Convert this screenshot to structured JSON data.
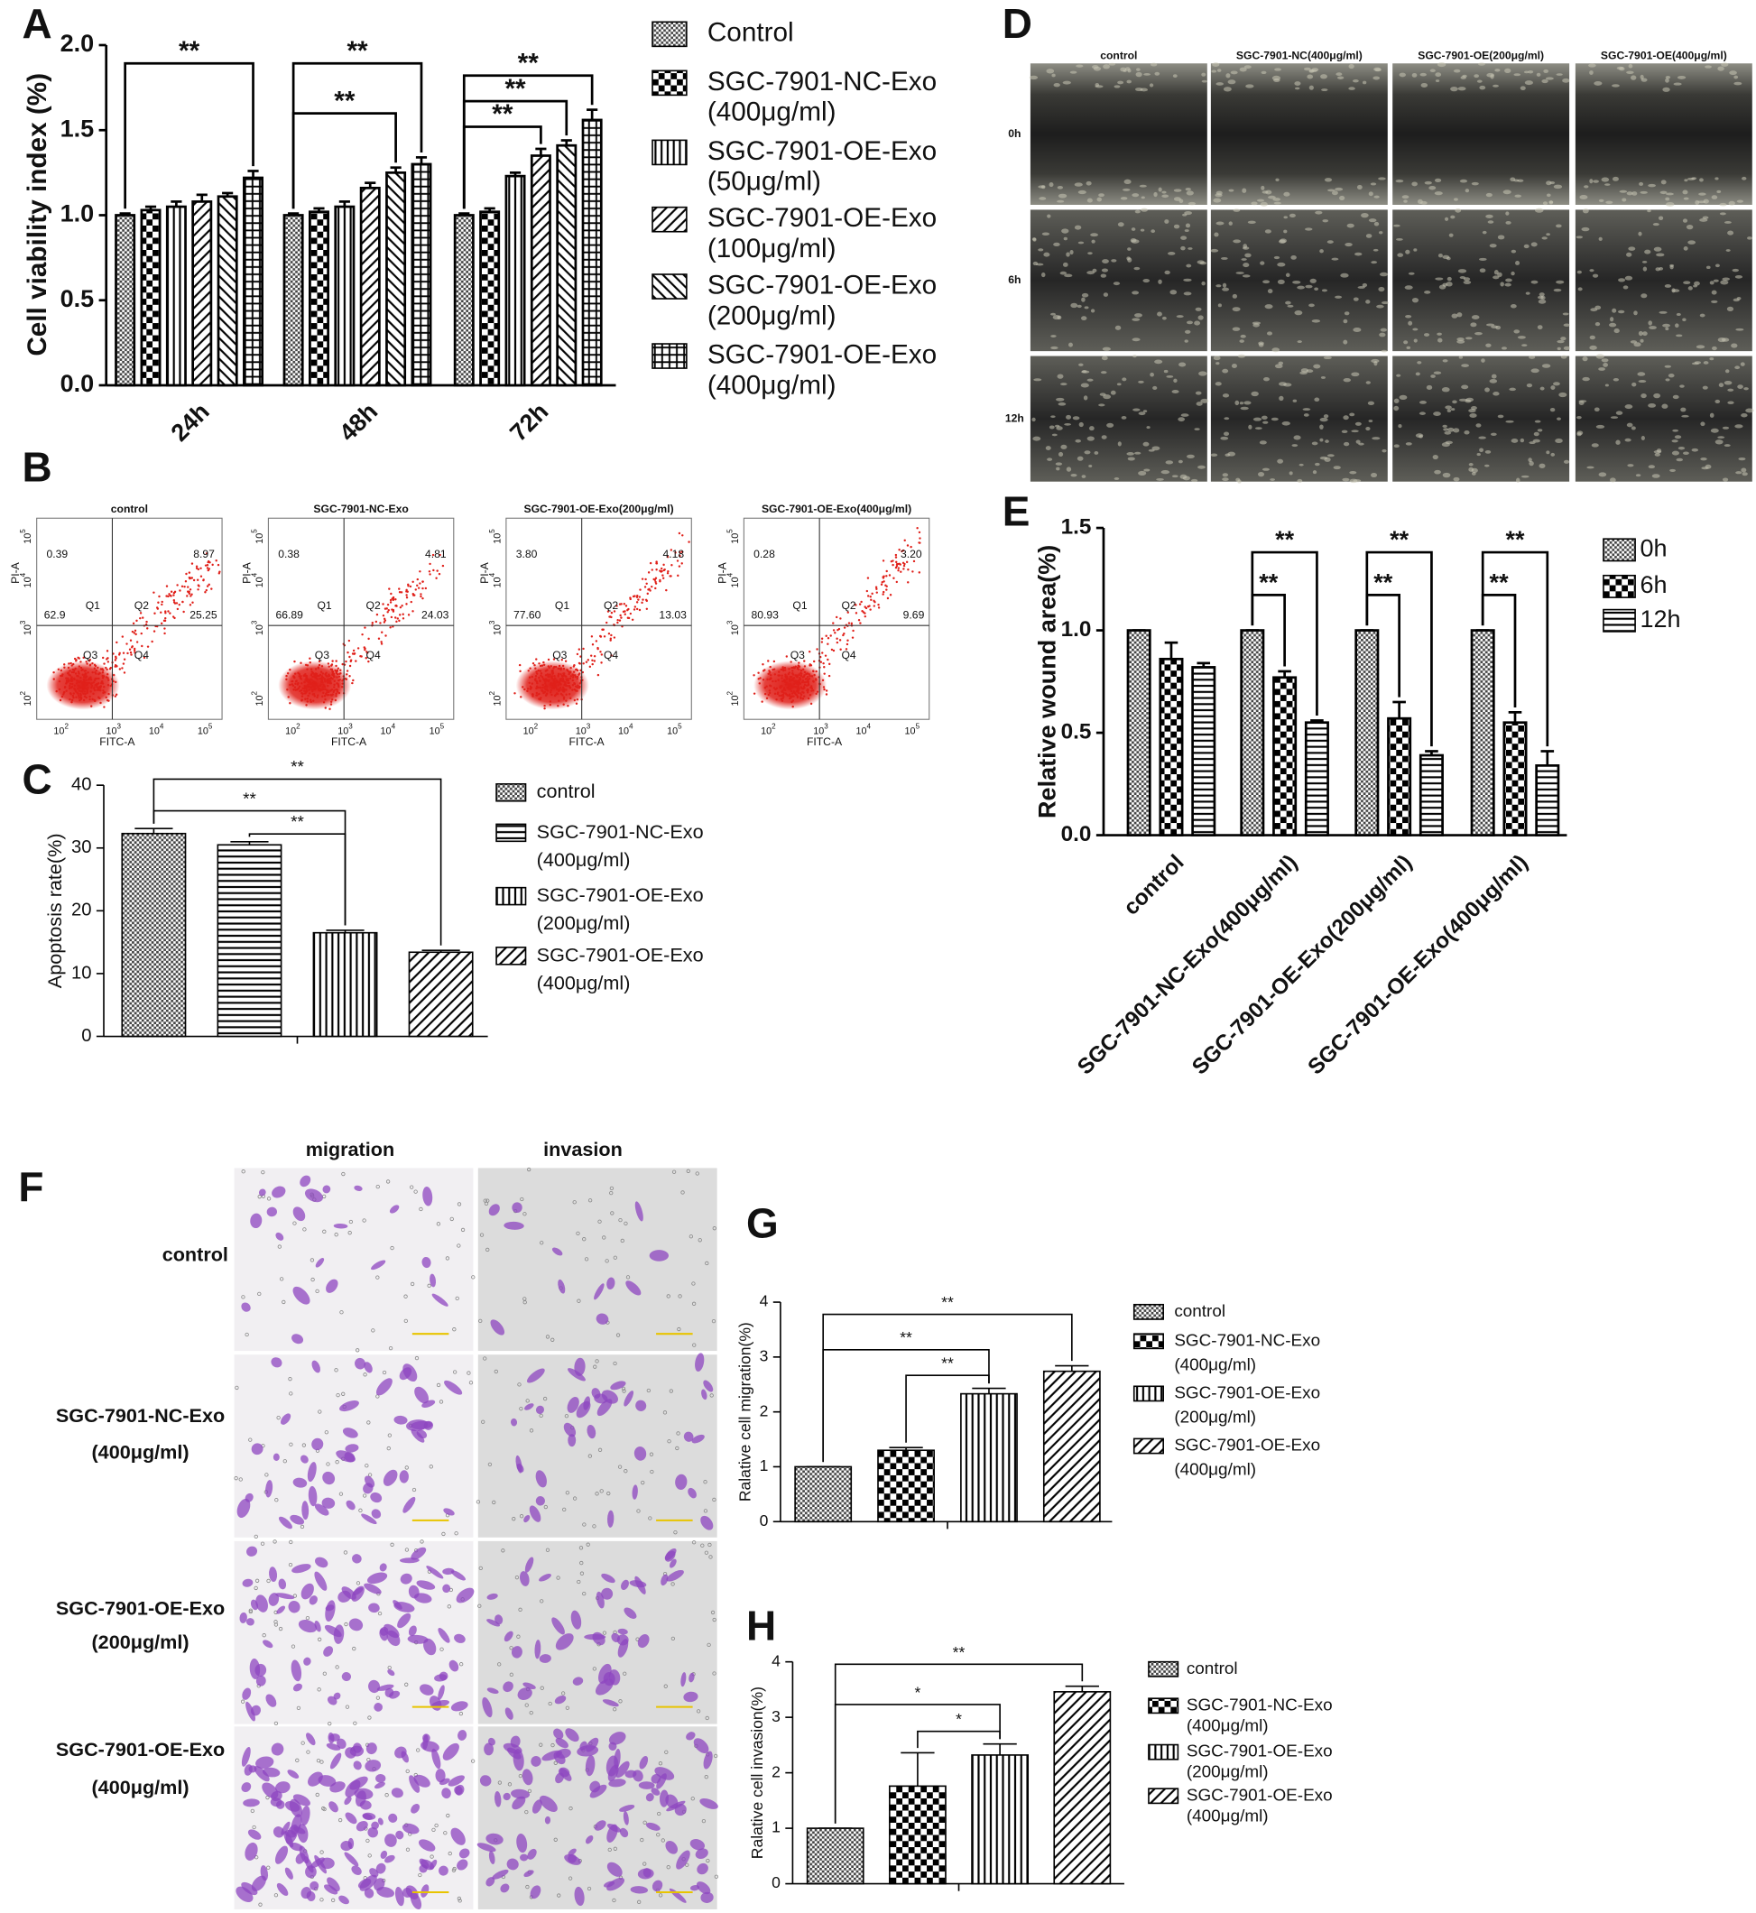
{
  "panel_letters": [
    "A",
    "B",
    "C",
    "D",
    "E",
    "F",
    "G",
    "H"
  ],
  "chart_data": [
    {
      "type": "bar",
      "ylabel": "Cell viability index (%)",
      "categories": [
        "24h",
        "48h",
        "72h"
      ],
      "series": [
        {
          "name": "Control",
          "pattern": "fine-checker",
          "values": [
            1.0,
            1.0,
            1.0
          ],
          "errors": [
            0.01,
            0.01,
            0.01
          ]
        },
        {
          "name": "SGC-7901-NC-Exo (400μg/ml)",
          "pattern": "checker",
          "values": [
            1.03,
            1.02,
            1.02
          ],
          "errors": [
            0.02,
            0.02,
            0.02
          ]
        },
        {
          "name": "SGC-7901-OE-Exo (50μg/ml)",
          "pattern": "vertical",
          "values": [
            1.05,
            1.05,
            1.23
          ],
          "errors": [
            0.03,
            0.03,
            0.02
          ]
        },
        {
          "name": "SGC-7901-OE-Exo (100μg/ml)",
          "pattern": "diagonal",
          "values": [
            1.08,
            1.16,
            1.35
          ],
          "errors": [
            0.04,
            0.03,
            0.04
          ]
        },
        {
          "name": "SGC-7901-OE-Exo (200μg/ml)",
          "pattern": "antidiagonal",
          "values": [
            1.11,
            1.25,
            1.41
          ],
          "errors": [
            0.02,
            0.03,
            0.03
          ]
        },
        {
          "name": "SGC-7901-OE-Exo (400μg/ml)",
          "pattern": "grid",
          "values": [
            1.22,
            1.3,
            1.56
          ],
          "errors": [
            0.04,
            0.04,
            0.06
          ]
        }
      ],
      "ylim": [
        0,
        2
      ],
      "yticks": [
        {
          "value": 0,
          "label": "0.0"
        },
        0.5,
        {
          "value": 1,
          "label": "1.0"
        },
        1.5,
        {
          "value": 2,
          "label": "2.0"
        }
      ],
      "annotations": [
        "**",
        "**",
        "**",
        "**",
        "**",
        "**"
      ]
    },
    {
      "type": "bar",
      "ylabel": "Apoptosis rate(%)",
      "categories": [
        null
      ],
      "series": [
        {
          "name": "control",
          "pattern": "fine-checker",
          "values": [
            32.3
          ],
          "errors": [
            0.8
          ]
        },
        {
          "name": "SGC-7901-NC-Exo (400μg/ml)",
          "pattern": "horizontal",
          "values": [
            30.5
          ],
          "errors": [
            0.5
          ]
        },
        {
          "name": "SGC-7901-OE-Exo (200μg/ml)",
          "pattern": "vertical",
          "values": [
            16.5
          ],
          "errors": [
            0.4
          ]
        },
        {
          "name": "SGC-7901-OE-Exo (400μg/ml)",
          "pattern": "diagonal",
          "values": [
            13.4
          ],
          "errors": [
            0.3
          ]
        }
      ],
      "ylim": [
        0,
        40
      ],
      "yticks": [
        0,
        10,
        20,
        30,
        40
      ],
      "annotations": [
        "**",
        "**",
        "**"
      ]
    },
    {
      "type": "bar",
      "ylabel": "Relative wound area(%)",
      "categories": [
        "control",
        "SGC-7901-NC-Exo(400μg/ml)",
        "SGC-7901-OE-Exo(200μg/ml)",
        "SGC-7901-OE-Exo(400μg/ml)"
      ],
      "series": [
        {
          "name": "0h",
          "pattern": "fine-checker",
          "values": [
            1.0,
            1.0,
            1.0,
            1.0
          ],
          "errors": [
            0,
            0,
            0,
            0
          ]
        },
        {
          "name": "6h",
          "pattern": "checker",
          "values": [
            0.86,
            0.77,
            0.57,
            0.55
          ],
          "errors": [
            0.08,
            0.03,
            0.08,
            0.05
          ]
        },
        {
          "name": "12h",
          "pattern": "horizontal",
          "values": [
            0.82,
            0.55,
            0.39,
            0.34
          ],
          "errors": [
            0.02,
            0.01,
            0.02,
            0.07
          ]
        }
      ],
      "ylim": [
        0,
        1.5
      ],
      "yticks": [
        {
          "value": 0,
          "label": "0.0"
        },
        0.5,
        {
          "value": 1,
          "label": "1.0"
        },
        1.5
      ],
      "annotations": [
        "**",
        "**",
        "**",
        "**",
        "**",
        "**"
      ]
    },
    {
      "type": "bar",
      "ylabel": "Ralative cell migration(%)",
      "categories": [
        null
      ],
      "series": [
        {
          "name": "control",
          "pattern": "fine-checker",
          "values": [
            1.0
          ],
          "errors": [
            0
          ]
        },
        {
          "name": "SGC-7901-NC-Exo (400μg/ml)",
          "pattern": "checker",
          "values": [
            1.3
          ],
          "errors": [
            0.05
          ]
        },
        {
          "name": "SGC-7901-OE-Exo (200μg/ml)",
          "pattern": "vertical",
          "values": [
            2.33
          ],
          "errors": [
            0.1
          ]
        },
        {
          "name": "SGC-7901-OE-Exo (400μg/ml)",
          "pattern": "diagonal",
          "values": [
            2.74
          ],
          "errors": [
            0.1
          ]
        }
      ],
      "ylim": [
        0,
        4
      ],
      "yticks": [
        0,
        1,
        2,
        3,
        4
      ],
      "annotations": [
        "**",
        "**",
        "**"
      ]
    },
    {
      "type": "bar",
      "ylabel": "Ralative cell invasion(%)",
      "categories": [
        null
      ],
      "series": [
        {
          "name": "control",
          "pattern": "fine-checker",
          "values": [
            1.0
          ],
          "errors": [
            0
          ]
        },
        {
          "name": "SGC-7901-NC-Exo (400μg/ml)",
          "pattern": "checker",
          "values": [
            1.76
          ],
          "errors": [
            0.6
          ]
        },
        {
          "name": "SGC-7901-OE-Exo (200μg/ml)",
          "pattern": "vertical",
          "values": [
            2.32
          ],
          "errors": [
            0.2
          ]
        },
        {
          "name": "SGC-7901-OE-Exo (400μg/ml)",
          "pattern": "diagonal",
          "values": [
            3.46
          ],
          "errors": [
            0.1
          ]
        }
      ],
      "ylim": [
        0,
        4
      ],
      "yticks": [
        0,
        1,
        2,
        3,
        4
      ],
      "annotations": [
        "**",
        "*",
        "*"
      ]
    }
  ],
  "figure": {
    "flow": {
      "plots": [
        {
          "title": "control",
          "quadrants": [
            "0.39",
            "8.97",
            "62.9",
            "25.25"
          ]
        },
        {
          "title": "SGC-7901-NC-Exo",
          "quadrants": [
            "0.38",
            "4.81",
            "66.89",
            "24.03"
          ]
        },
        {
          "title": "SGC-7901-OE-Exo(200μg/ml)",
          "quadrants": [
            "3.80",
            "4.18",
            "77.60",
            "13.03"
          ]
        },
        {
          "title": "SGC-7901-OE-Exo(400μg/ml)",
          "quadrants": [
            "0.28",
            "3.20",
            "80.93",
            "9.69"
          ]
        }
      ],
      "quadrant_labels": [
        "Q1",
        "Q2",
        "Q3",
        "Q4"
      ],
      "ylabel": "PI-A",
      "xlabel": "FITC-A",
      "ticks": [
        {
          "base": "10",
          "exponent": "2"
        },
        {
          "base": "10",
          "exponent": "3"
        },
        {
          "base": "10",
          "exponent": "4"
        },
        {
          "base": "10",
          "exponent": "5"
        }
      ]
    },
    "wound": {
      "columns": [
        "control",
        "SGC-7901-NC(400μg/ml)",
        "SGC-7901-OE(200μg/ml)",
        "SGC-7901-OE(400μg/ml)"
      ],
      "rows": [
        "0h",
        "6h",
        "12h"
      ]
    },
    "transwell": {
      "columns": [
        "migration",
        "invasion"
      ],
      "rows": [
        [
          "control"
        ],
        [
          "SGC-7901-NC-Exo",
          "(400μg/ml)"
        ],
        [
          "SGC-7901-OE-Exo",
          "(200μg/ml)"
        ],
        [
          "SGC-7901-OE-Exo",
          "(400μg/ml)"
        ]
      ]
    }
  }
}
